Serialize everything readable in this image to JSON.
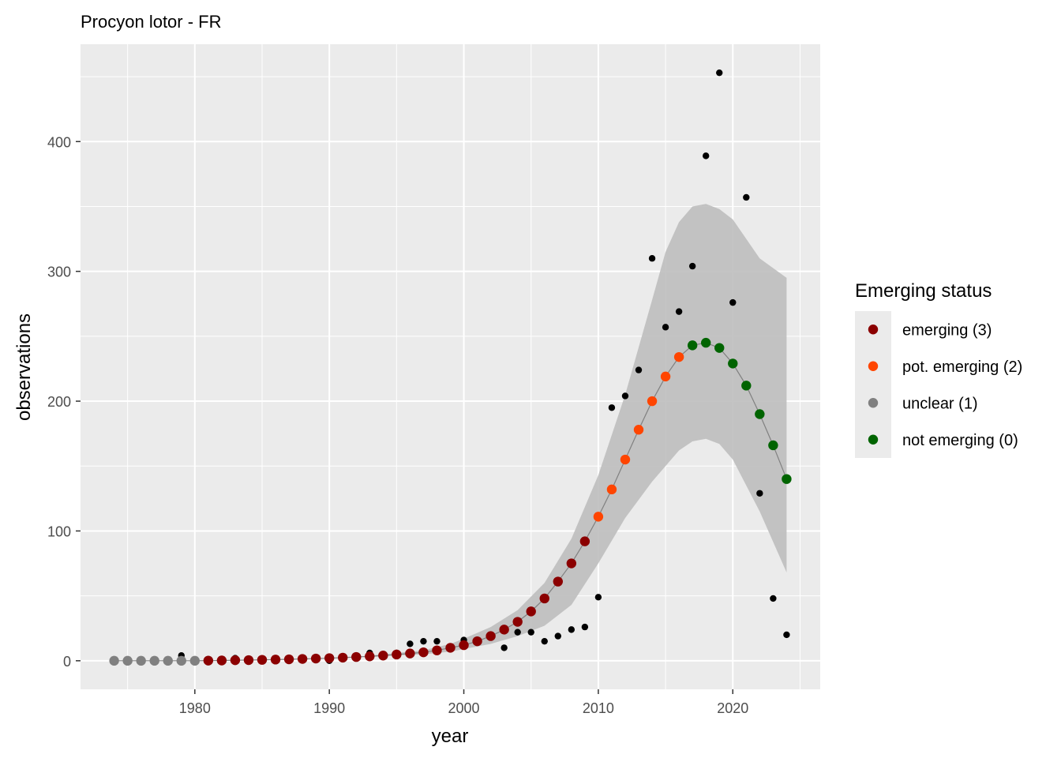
{
  "chart_data": {
    "type": "scatter",
    "title": "Procyon lotor - FR",
    "xlabel": "year",
    "ylabel": "observations",
    "xlim": [
      1971.5,
      2026.5
    ],
    "ylim": [
      -22,
      475
    ],
    "x_ticks": [
      1980,
      1990,
      2000,
      2010,
      2020
    ],
    "y_ticks": [
      0,
      100,
      200,
      300,
      400
    ],
    "grid": true,
    "legend": {
      "title": "Emerging status",
      "placement": "right",
      "entries": [
        {
          "label": "emerging (3)",
          "color": "#8b0000"
        },
        {
          "label": "pot. emerging (2)",
          "color": "#ff4500"
        },
        {
          "label": "unclear (1)",
          "color": "#808080"
        },
        {
          "label": "not emerging (0)",
          "color": "#006400"
        }
      ]
    },
    "colors": {
      "emerging": "#8b0000",
      "pot_emerging": "#ff4500",
      "unclear": "#808080",
      "not_emerging": "#006400",
      "observed": "#000000",
      "band": "#bebebe",
      "panel": "#ebebeb"
    },
    "observed": {
      "x": [
        1974,
        1975,
        1976,
        1977,
        1978,
        1979,
        1980,
        1981,
        1982,
        1983,
        1984,
        1985,
        1986,
        1987,
        1988,
        1989,
        1990,
        1991,
        1992,
        1993,
        1994,
        1995,
        1996,
        1997,
        1998,
        1999,
        2000,
        2001,
        2002,
        2003,
        2004,
        2005,
        2006,
        2007,
        2008,
        2009,
        2010,
        2011,
        2012,
        2013,
        2014,
        2015,
        2016,
        2017,
        2018,
        2019,
        2020,
        2021,
        2022,
        2023,
        2024
      ],
      "y": [
        0,
        0,
        0,
        0,
        0,
        4,
        0,
        0,
        0,
        2,
        0,
        0,
        0,
        1,
        1,
        1,
        0,
        2,
        2,
        6,
        3,
        6,
        13,
        15,
        15,
        10,
        16,
        15,
        20,
        10,
        22,
        22,
        15,
        19,
        24,
        26,
        49,
        195,
        204,
        224,
        310,
        257,
        269,
        304,
        389,
        453,
        276,
        357,
        129,
        48,
        20
      ]
    },
    "fitted": {
      "x": [
        1974,
        1975,
        1976,
        1977,
        1978,
        1979,
        1980,
        1981,
        1982,
        1983,
        1984,
        1985,
        1986,
        1987,
        1988,
        1989,
        1990,
        1991,
        1992,
        1993,
        1994,
        1995,
        1996,
        1997,
        1998,
        1999,
        2000,
        2001,
        2002,
        2003,
        2004,
        2005,
        2006,
        2007,
        2008,
        2009,
        2010,
        2011,
        2012,
        2013,
        2014,
        2015,
        2016,
        2017,
        2018,
        2019,
        2020,
        2021,
        2022,
        2023,
        2024
      ],
      "y": [
        0,
        0,
        0,
        0,
        0,
        0,
        0,
        0.1,
        0.2,
        0.4,
        0.5,
        0.7,
        0.9,
        1.1,
        1.4,
        1.7,
        2,
        2.4,
        2.9,
        3.4,
        4,
        4.8,
        5.6,
        6.5,
        8,
        10,
        12,
        15,
        19,
        24,
        30,
        38,
        48,
        61,
        75,
        92,
        111,
        132,
        155,
        178,
        200,
        219,
        234,
        243,
        245,
        241,
        229,
        212,
        190,
        166,
        140
      ],
      "status": [
        "unclear",
        "unclear",
        "unclear",
        "unclear",
        "unclear",
        "unclear",
        "unclear",
        "emerging",
        "emerging",
        "emerging",
        "emerging",
        "emerging",
        "emerging",
        "emerging",
        "emerging",
        "emerging",
        "emerging",
        "emerging",
        "emerging",
        "emerging",
        "emerging",
        "emerging",
        "emerging",
        "emerging",
        "emerging",
        "emerging",
        "emerging",
        "emerging",
        "emerging",
        "emerging",
        "emerging",
        "emerging",
        "emerging",
        "emerging",
        "emerging",
        "emerging",
        "pot_emerging",
        "pot_emerging",
        "pot_emerging",
        "pot_emerging",
        "pot_emerging",
        "pot_emerging",
        "pot_emerging",
        "not_emerging",
        "not_emerging",
        "not_emerging",
        "not_emerging",
        "not_emerging",
        "not_emerging",
        "not_emerging",
        "not_emerging"
      ]
    },
    "band": {
      "x": [
        1993,
        1995,
        1997,
        1999,
        2000,
        2002,
        2004,
        2006,
        2008,
        2010,
        2012,
        2014,
        2015,
        2016,
        2017,
        2018,
        2019,
        2020,
        2022,
        2024
      ],
      "lower": [
        3,
        4,
        5,
        7,
        9,
        13,
        19,
        27,
        43,
        75,
        110,
        138,
        150,
        162,
        169,
        171,
        167,
        155,
        115,
        68
      ],
      "upper": [
        4,
        6,
        8,
        13,
        17,
        26,
        39,
        60,
        94,
        143,
        205,
        278,
        315,
        338,
        350,
        352,
        348,
        340,
        310,
        295
      ]
    }
  }
}
